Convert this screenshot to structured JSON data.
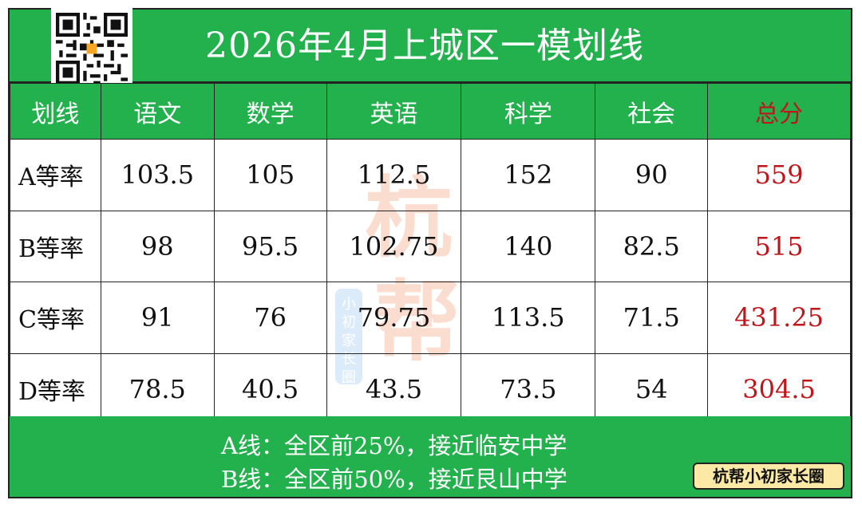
{
  "title": "2026年4月上城区一模划线",
  "table": {
    "headers": [
      "划线",
      "语文",
      "数学",
      "英语",
      "科学",
      "社会",
      "总分"
    ],
    "rows": [
      {
        "label": "A等率",
        "cells": [
          "103.5",
          "105",
          "112.5",
          "152",
          "90"
        ],
        "total": "559"
      },
      {
        "label": "B等率",
        "cells": [
          "98",
          "95.5",
          "102.75",
          "140",
          "82.5"
        ],
        "total": "515"
      },
      {
        "label": "C等率",
        "cells": [
          "91",
          "76",
          "79.75",
          "113.5",
          "71.5"
        ],
        "total": "431.25"
      },
      {
        "label": "D等率",
        "cells": [
          "78.5",
          "40.5",
          "43.5",
          "73.5",
          "54"
        ],
        "total": "304.5"
      }
    ]
  },
  "notes": [
    "A线：全区前25%，接近临安中学",
    "B线：全区前50%，接近艮山中学"
  ],
  "badge": "杭帮小初家长圈",
  "watermark": {
    "big": "杭帮",
    "small": "小初家长圈"
  },
  "colors": {
    "green": "#23b14d",
    "total_red": "#c0151a",
    "badge_yellow": "#fce9a6"
  }
}
